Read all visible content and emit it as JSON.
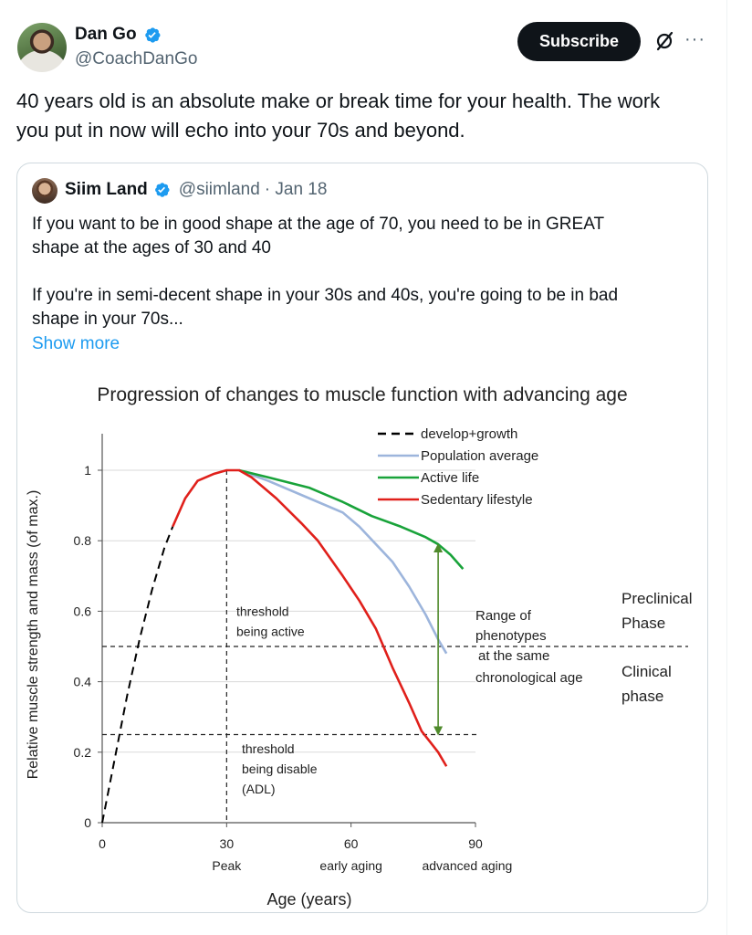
{
  "author": {
    "name": "Dan Go",
    "handle": "@CoachDanGo",
    "verified": true
  },
  "actions": {
    "subscribe_label": "Subscribe",
    "grok_icon": "slashed-circle-icon",
    "more_icon": "ellipsis-icon",
    "more_glyph": "···"
  },
  "tweet": {
    "text_line1": "40 years old is an absolute make or break time for your health. The work",
    "text_line2": "you put in now will echo into your 70s and beyond."
  },
  "quote": {
    "name": "Siim Land",
    "handle": "@siimland",
    "date": "· Jan 18",
    "verified": true,
    "p1_line1": "If you want to be in good shape at the age of 70, you need to be in GREAT",
    "p1_line2": "shape at the ages of 30 and 40",
    "p2_line1": "If you're in semi-decent shape in your 30s and 40s, you're going to be in bad",
    "p2_line2": "shape in your 70s...",
    "show_more": "Show more"
  },
  "colors": {
    "accent": "#1d9bf0",
    "develop": "#000000",
    "population": "#9db5dc",
    "active": "#19a33a",
    "sedentary": "#e0201b",
    "range_arrow": "#4f8a2b"
  },
  "chart_data": {
    "type": "line",
    "title": "Progression of  changes to muscle function with advancing age",
    "xlabel": "Age (years)",
    "ylabel": "Relative muscle strength and mass (of max.)",
    "xlim": [
      0,
      90
    ],
    "ylim": [
      0,
      1
    ],
    "xticks": [
      0,
      30,
      60,
      90
    ],
    "yticks": [
      0,
      0.2,
      0.4,
      0.6,
      0.8,
      1
    ],
    "ytick_labels": [
      "0",
      "0.2",
      "0.4",
      "0.6",
      "0.8",
      "1"
    ],
    "xtick_labels": [
      "0",
      "30",
      "60",
      "90"
    ],
    "xsublabels": [
      {
        "x": 30,
        "text": "Peak"
      },
      {
        "x": 60,
        "text": "early aging"
      },
      {
        "x": 88,
        "text": "advanced aging"
      }
    ],
    "legend_position": "top-right",
    "series": [
      {
        "name": "develop+growth",
        "style": "dashed",
        "color": "#000000",
        "x": [
          0,
          3,
          6,
          9,
          12,
          15,
          17
        ],
        "y": [
          0,
          0.18,
          0.36,
          0.52,
          0.66,
          0.78,
          0.84
        ]
      },
      {
        "name": "Population average",
        "style": "solid",
        "color": "#9db5dc",
        "x": [
          33,
          40,
          50,
          58,
          62,
          66,
          70,
          74,
          78,
          81,
          83
        ],
        "y": [
          1.0,
          0.97,
          0.92,
          0.88,
          0.84,
          0.79,
          0.74,
          0.67,
          0.59,
          0.52,
          0.48
        ]
      },
      {
        "name": "Active life",
        "style": "solid",
        "color": "#19a33a",
        "x": [
          33,
          40,
          50,
          58,
          65,
          72,
          78,
          81,
          84,
          87
        ],
        "y": [
          1.0,
          0.98,
          0.95,
          0.91,
          0.87,
          0.84,
          0.81,
          0.79,
          0.76,
          0.72
        ]
      },
      {
        "name": "Sedentary lifestyle",
        "style": "solid",
        "color": "#e0201b",
        "x": [
          17,
          20,
          23,
          27,
          30,
          33,
          36,
          42,
          48,
          52,
          55,
          58,
          62,
          66,
          70,
          74,
          77,
          79,
          81,
          83
        ],
        "y": [
          0.84,
          0.92,
          0.97,
          0.99,
          1.0,
          1.0,
          0.98,
          0.92,
          0.85,
          0.8,
          0.75,
          0.7,
          0.63,
          0.55,
          0.44,
          0.34,
          0.26,
          0.23,
          0.2,
          0.16
        ]
      }
    ],
    "thresholds": [
      {
        "y": 0.5,
        "label_line1": "threshold",
        "label_line2": "being active"
      },
      {
        "y": 0.25,
        "label_line1": "threshold",
        "label_line2": "being disable",
        "label_line3": "(ADL)"
      }
    ],
    "range_arrow": {
      "x": 81,
      "y_top": 0.79,
      "y_bottom": 0.25
    },
    "annotations": {
      "range_line1": "Range of",
      "range_line2": "phenotypes",
      "range_line3": "at the same",
      "range_line4": "chronological age",
      "preclinical_line1": "Preclinical",
      "preclinical_line2": "Phase",
      "clinical_line1": "Clinical",
      "clinical_line2": "phase"
    }
  }
}
